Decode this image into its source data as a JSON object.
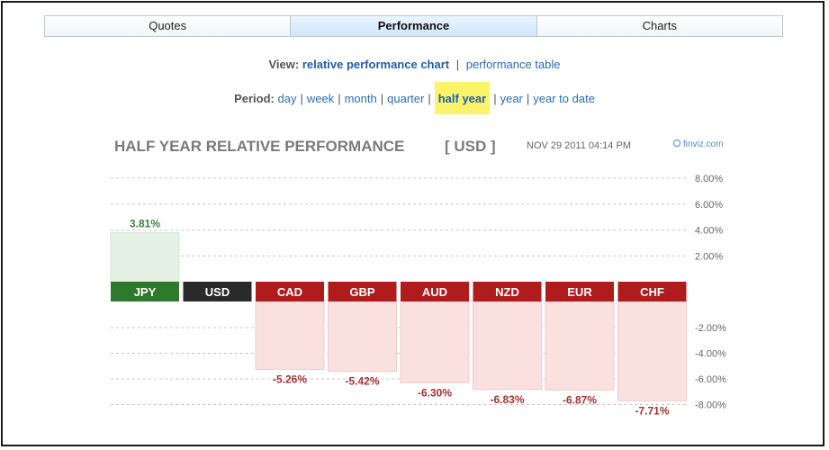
{
  "tabs": [
    {
      "label": "Quotes",
      "active": false
    },
    {
      "label": "Performance",
      "active": true
    },
    {
      "label": "Charts",
      "active": false
    }
  ],
  "view": {
    "label": "View:",
    "options": [
      "relative performance chart",
      "performance table"
    ],
    "selected": "relative performance chart"
  },
  "period": {
    "label": "Period:",
    "options": [
      "day",
      "week",
      "month",
      "quarter",
      "half year",
      "year",
      "year to date"
    ],
    "selected": "half year"
  },
  "chart_data": {
    "type": "bar",
    "title": "HALF YEAR RELATIVE PERFORMANCE",
    "currency": "[ USD ]",
    "timestamp": "NOV 29 2011 04:14 PM",
    "source": "finviz.com",
    "categories": [
      "JPY",
      "USD",
      "CAD",
      "GBP",
      "AUD",
      "NZD",
      "EUR",
      "CHF"
    ],
    "values": [
      3.81,
      0,
      -5.26,
      -5.42,
      -6.3,
      -6.83,
      -6.87,
      -7.71
    ],
    "value_labels": [
      "3.81%",
      "",
      "-5.26%",
      "-5.42%",
      "-6.30%",
      "-6.83%",
      "-6.87%",
      "-7.71%"
    ],
    "yticks": [
      "8.00%",
      "6.00%",
      "4.00%",
      "2.00%",
      "-2.00%",
      "-4.00%",
      "-6.00%",
      "-8.00%"
    ],
    "ylim": [
      -8,
      8
    ],
    "colors": {
      "positive": "#2d7a2d",
      "neutral": "#2a2a2a",
      "negative": "#b01c1c",
      "positive_fill": "#e6f1e6",
      "negative_fill": "#fbe0e0",
      "positive_text": "#3f7f3f",
      "negative_text": "#a33232"
    }
  }
}
